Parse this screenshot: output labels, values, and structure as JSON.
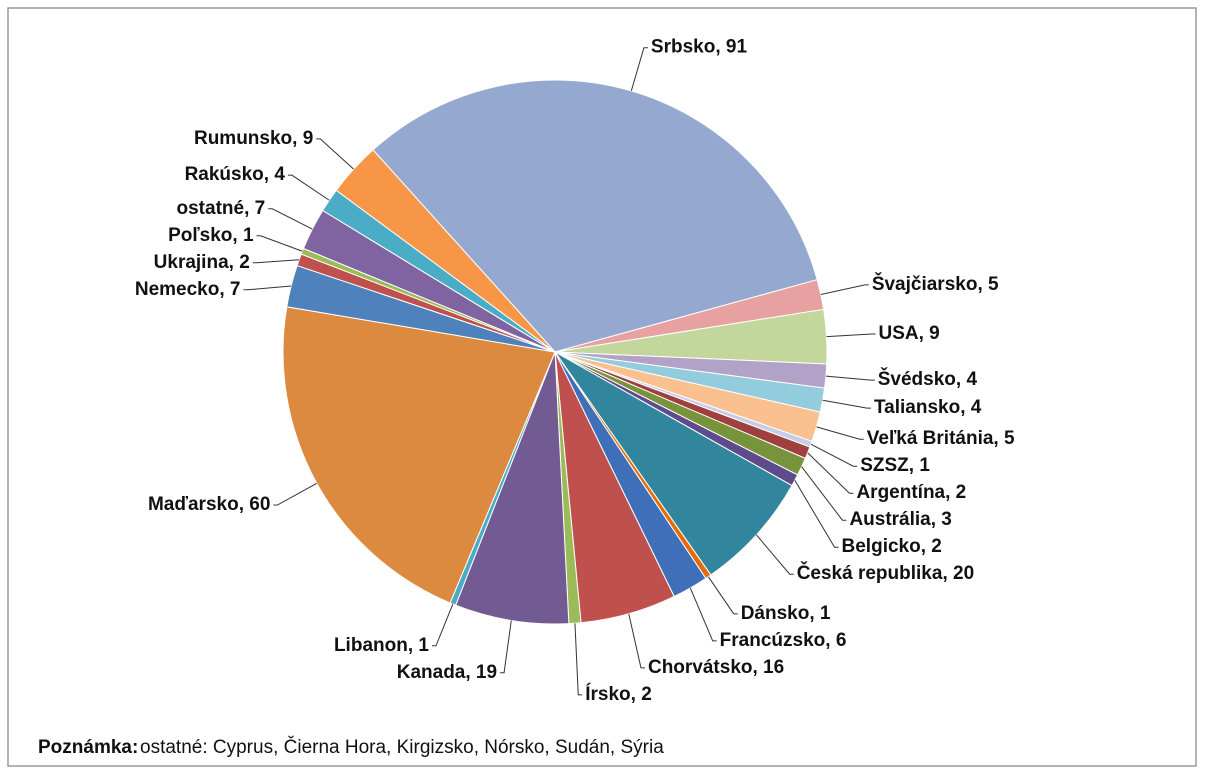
{
  "chart_data": {
    "type": "pie",
    "categories": [
      "Srbsko",
      "Švajčiarsko",
      "USA",
      "Švédsko",
      "Taliansko",
      "Veľká Británia",
      "SZSZ",
      "Argentína",
      "Austrália",
      "Belgicko",
      "Česká republika",
      "Dánsko",
      "Francúzsko",
      "Chorvátsko",
      "Írsko",
      "Kanada",
      "Libanon",
      "Maďarsko",
      "Nemecko",
      "Ukrajina",
      "Poľsko",
      "ostatné",
      "Rakúsko",
      "Rumunsko"
    ],
    "values": [
      91,
      5,
      9,
      4,
      4,
      5,
      1,
      2,
      3,
      2,
      20,
      1,
      6,
      16,
      2,
      19,
      1,
      60,
      7,
      2,
      1,
      7,
      4,
      9
    ],
    "value_labels": [
      "Srbsko, 91",
      "Švajčiarsko, 5",
      "USA, 9",
      "Švédsko, 4",
      "Taliansko, 4",
      "Veľká Británia, 5",
      "SZSZ, 1",
      "Argentína, 2",
      "Austrália, 3",
      "Belgicko, 2",
      "Česká republika, 20",
      "Dánsko, 1",
      "Francúzsko, 6",
      "Chorvátsko, 16",
      "Írsko, 2",
      "Kanada, 19",
      "Libanon, 1",
      "Maďarsko, 60",
      "Nemecko, 7",
      "Ukrajina, 2",
      "Poľsko, 1",
      "ostatné, 7",
      "Rakúsko, 4",
      "Rumunsko, 9"
    ],
    "colors": [
      "#95a9d0",
      "#e6a1a0",
      "#c3d69b",
      "#b3a2c7",
      "#93cddd",
      "#fac090",
      "#c6cde6",
      "#a0403e",
      "#77933c",
      "#5f4b8b",
      "#31859c",
      "#e46c0a",
      "#3f6fb8",
      "#c0504d",
      "#9bbb59",
      "#725a93",
      "#4bacc6",
      "#dc8a40",
      "#4f81bd",
      "#c0504d",
      "#9bbb59",
      "#8064a2",
      "#4bacc6",
      "#f79646"
    ],
    "note_label": "Poznámka:",
    "note": "ostatné: Cyprus, Čierna Hora, Kirgizsko, Nórsko, Sudán, Sýria"
  }
}
